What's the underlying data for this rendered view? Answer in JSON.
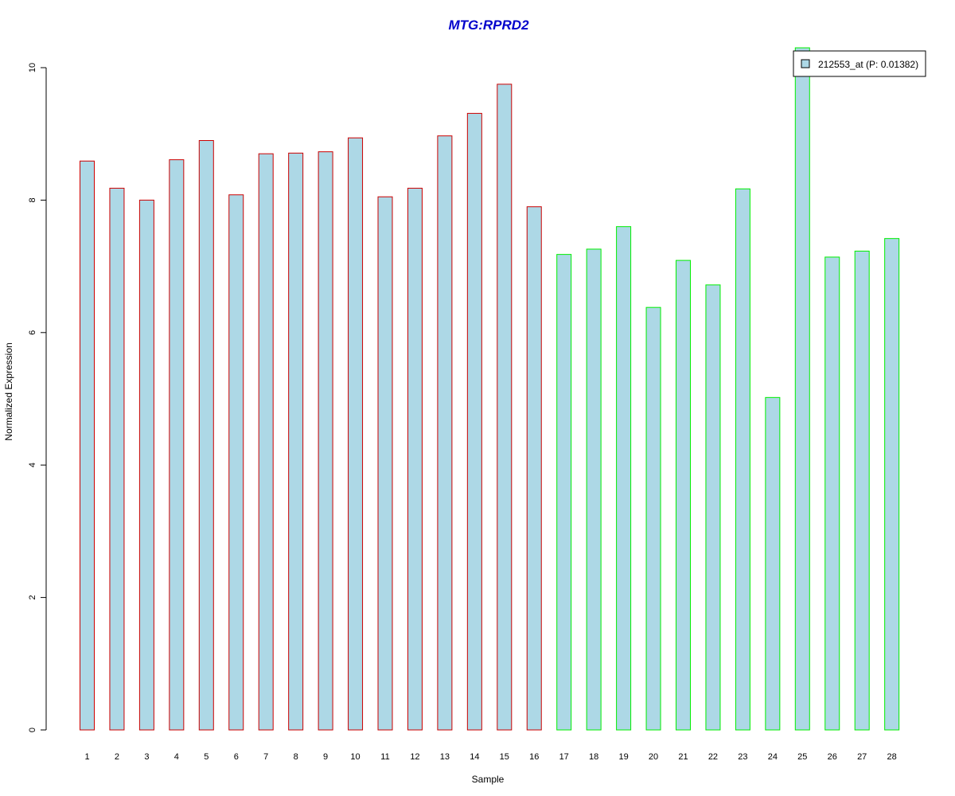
{
  "chart_data": {
    "type": "bar",
    "title": "MTG:RPRD2",
    "xlabel": "Sample",
    "ylabel": "Normalized Expression",
    "ylim": [
      0,
      10.3
    ],
    "yticks": [
      0,
      2,
      4,
      6,
      8,
      10
    ],
    "categories": [
      "1",
      "2",
      "3",
      "4",
      "5",
      "6",
      "7",
      "8",
      "9",
      "10",
      "11",
      "12",
      "13",
      "14",
      "15",
      "16",
      "17",
      "18",
      "19",
      "20",
      "21",
      "22",
      "23",
      "24",
      "25",
      "26",
      "27",
      "28"
    ],
    "series": [
      {
        "name": "212553_at (P: 0.01382)",
        "values": [
          8.59,
          8.18,
          8.0,
          8.61,
          8.9,
          8.08,
          8.7,
          8.71,
          8.73,
          8.94,
          8.05,
          8.18,
          8.97,
          9.31,
          9.75,
          7.9,
          7.18,
          7.26,
          7.6,
          6.38,
          7.09,
          6.72,
          8.17,
          5.02,
          10.3,
          7.14,
          7.23,
          7.42
        ]
      }
    ],
    "groups": [
      {
        "first": 1,
        "last": 16,
        "border_color": "#cc0000"
      },
      {
        "first": 17,
        "last": 28,
        "border_color": "#00ee00"
      }
    ],
    "fill_color": "#add8e6",
    "title_color": "#0000cc",
    "grid": false,
    "legend_position": "top-right"
  }
}
